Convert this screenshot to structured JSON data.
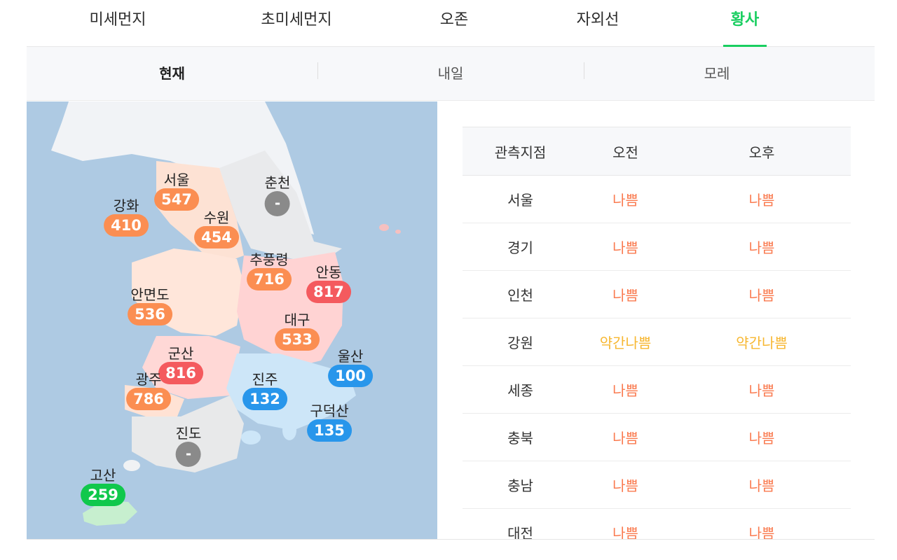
{
  "tabs": [
    {
      "label": "미세먼지"
    },
    {
      "label": "초미세먼지"
    },
    {
      "label": "오존"
    },
    {
      "label": "자외선"
    },
    {
      "label": "황사",
      "active": true
    }
  ],
  "subtabs": [
    {
      "label": "현재",
      "active": true
    },
    {
      "label": "내일"
    },
    {
      "label": "모레"
    }
  ],
  "map": {
    "cities": [
      {
        "name": "서울",
        "value": "547",
        "level": "orange"
      },
      {
        "name": "춘천",
        "value": "-",
        "level": "gray"
      },
      {
        "name": "강화",
        "value": "410",
        "level": "orange"
      },
      {
        "name": "수원",
        "value": "454",
        "level": "orange"
      },
      {
        "name": "추풍령",
        "value": "716",
        "level": "orange"
      },
      {
        "name": "안동",
        "value": "817",
        "level": "red"
      },
      {
        "name": "안면도",
        "value": "536",
        "level": "orange"
      },
      {
        "name": "대구",
        "value": "533",
        "level": "orange"
      },
      {
        "name": "군산",
        "value": "816",
        "level": "red"
      },
      {
        "name": "울산",
        "value": "100",
        "level": "blue"
      },
      {
        "name": "광주",
        "value": "786",
        "level": "orange"
      },
      {
        "name": "진주",
        "value": "132",
        "level": "blue"
      },
      {
        "name": "구덕산",
        "value": "135",
        "level": "blue"
      },
      {
        "name": "진도",
        "value": "-",
        "level": "gray"
      },
      {
        "name": "고산",
        "value": "259",
        "level": "green"
      }
    ]
  },
  "table": {
    "headers": [
      "관측지점",
      "오전",
      "오후"
    ],
    "rows": [
      {
        "station": "서울",
        "am": "나쁨",
        "pm": "나쁨",
        "am_level": "bad",
        "pm_level": "bad"
      },
      {
        "station": "경기",
        "am": "나쁨",
        "pm": "나쁨",
        "am_level": "bad",
        "pm_level": "bad"
      },
      {
        "station": "인천",
        "am": "나쁨",
        "pm": "나쁨",
        "am_level": "bad",
        "pm_level": "bad"
      },
      {
        "station": "강원",
        "am": "약간나쁨",
        "pm": "약간나쁨",
        "am_level": "mbad",
        "pm_level": "mbad"
      },
      {
        "station": "세종",
        "am": "나쁨",
        "pm": "나쁨",
        "am_level": "bad",
        "pm_level": "bad"
      },
      {
        "station": "충북",
        "am": "나쁨",
        "pm": "나쁨",
        "am_level": "bad",
        "pm_level": "bad"
      },
      {
        "station": "충남",
        "am": "나쁨",
        "pm": "나쁨",
        "am_level": "bad",
        "pm_level": "bad"
      },
      {
        "station": "대전",
        "am": "나쁨",
        "pm": "나쁨",
        "am_level": "bad",
        "pm_level": "bad"
      }
    ]
  },
  "colors": {
    "accent": "#19ce60",
    "bad": "#fa7a4f",
    "moderately_bad": "#f7b731",
    "badge_orange": "#fb8e52",
    "badge_red": "#f45a5e",
    "badge_blue": "#2896eb",
    "badge_green": "#10c84c",
    "badge_gray": "#8a8a8a"
  }
}
